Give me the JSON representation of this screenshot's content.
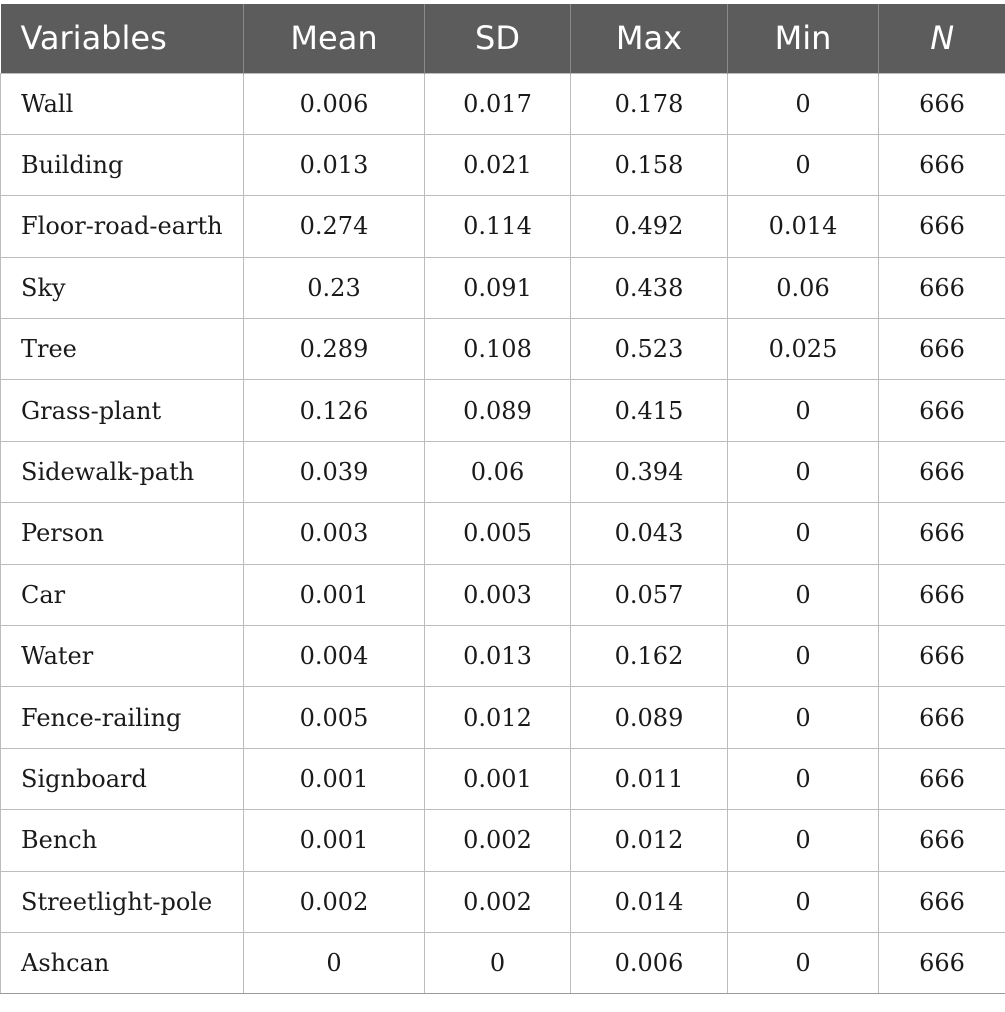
{
  "table": {
    "headers": [
      "Variables",
      "Mean",
      "SD",
      "Max",
      "Min",
      "N"
    ],
    "rows": [
      [
        "Wall",
        "0.006",
        "0.017",
        "0.178",
        "0",
        "666"
      ],
      [
        "Building",
        "0.013",
        "0.021",
        "0.158",
        "0",
        "666"
      ],
      [
        "Floor-road-earth",
        "0.274",
        "0.114",
        "0.492",
        "0.014",
        "666"
      ],
      [
        "Sky",
        "0.23",
        "0.091",
        "0.438",
        "0.06",
        "666"
      ],
      [
        "Tree",
        "0.289",
        "0.108",
        "0.523",
        "0.025",
        "666"
      ],
      [
        "Grass-plant",
        "0.126",
        "0.089",
        "0.415",
        "0",
        "666"
      ],
      [
        "Sidewalk-path",
        "0.039",
        "0.06",
        "0.394",
        "0",
        "666"
      ],
      [
        "Person",
        "0.003",
        "0.005",
        "0.043",
        "0",
        "666"
      ],
      [
        "Car",
        "0.001",
        "0.003",
        "0.057",
        "0",
        "666"
      ],
      [
        "Water",
        "0.004",
        "0.013",
        "0.162",
        "0",
        "666"
      ],
      [
        "Fence-railing",
        "0.005",
        "0.012",
        "0.089",
        "0",
        "666"
      ],
      [
        "Signboard",
        "0.001",
        "0.001",
        "0.011",
        "0",
        "666"
      ],
      [
        "Bench",
        "0.001",
        "0.002",
        "0.012",
        "0",
        "666"
      ],
      [
        "Streetlight-pole",
        "0.002",
        "0.002",
        "0.014",
        "0",
        "666"
      ],
      [
        "Ashcan",
        "0",
        "0",
        "0.006",
        "0",
        "666"
      ]
    ]
  },
  "colors": {
    "header_background": "#5c5c5c",
    "header_text": "#ffffff",
    "grid_lines": "#bdbdbd"
  }
}
